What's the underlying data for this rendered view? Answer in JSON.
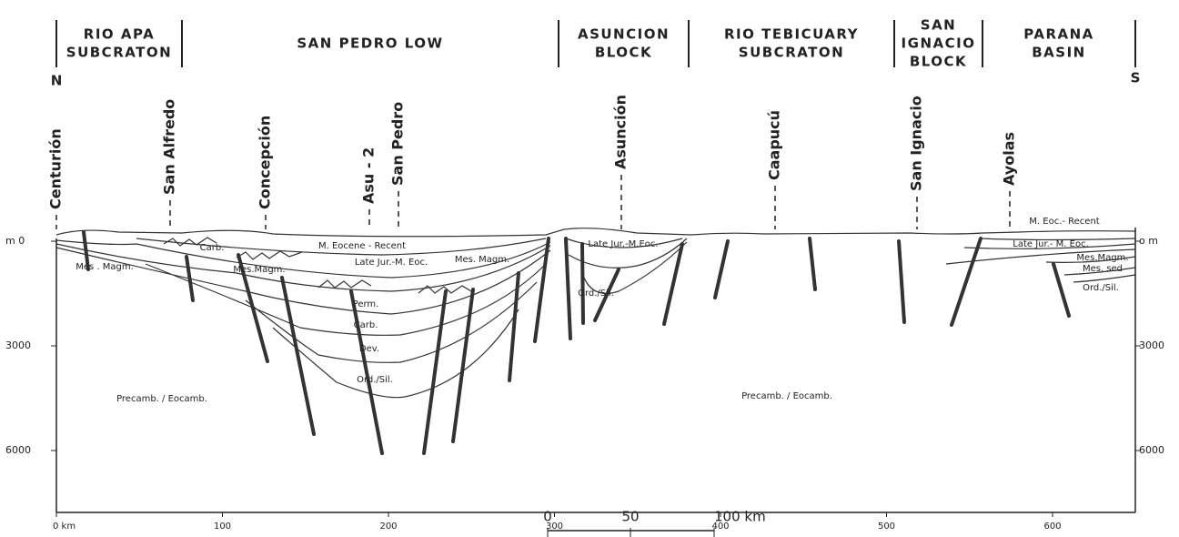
{
  "regions": [
    {
      "lines": [
        "RIO APA",
        "SUBCRATON"
      ]
    },
    {
      "lines": [
        "SAN PEDRO LOW"
      ]
    },
    {
      "lines": [
        "ASUNCION",
        "BLOCK"
      ]
    },
    {
      "lines": [
        "RIO TEBICUARY",
        "SUBCRATON"
      ]
    },
    {
      "lines": [
        "SAN",
        "IGNACIO",
        "BLOCK"
      ]
    },
    {
      "lines": [
        "PARANA",
        "BASIN"
      ]
    }
  ],
  "directions": {
    "north": "N",
    "south": "S"
  },
  "wells": [
    "Centurión",
    "San Alfredo",
    "Concepción",
    "Asu - 2",
    "San Pedro",
    "Asunción",
    "Caapucú",
    "San Ignacio",
    "Ayolas"
  ],
  "units": [
    "Carb.",
    "Mes . Magm.",
    "M. Eocene - Recent",
    "Late Jur.-M. Eoc.",
    "Mes.Magm.",
    "Mes. Magm.",
    "Perm.",
    "Carb.",
    "Dev.",
    "Ord./Sil.",
    "Precamb. / Eocamb.",
    "Late Jur.-M.Eoc.",
    "Ord./Sil.",
    "Precamb. / Eocamb.",
    "M. Eoc.- Recent",
    "Late Jur.- M. Eoc.",
    "Mes.Magm.",
    "Mes. sed",
    "Ord./Sil."
  ],
  "depth_axis_left": [
    "m  0",
    "3000",
    "6000"
  ],
  "depth_axis_right": [
    "o m",
    "3000",
    "6000"
  ],
  "distance_axis": [
    "0 km",
    "100",
    "200",
    "300",
    "400",
    "500",
    "600"
  ],
  "scale_bar": [
    "0",
    "50",
    "100 km"
  ]
}
